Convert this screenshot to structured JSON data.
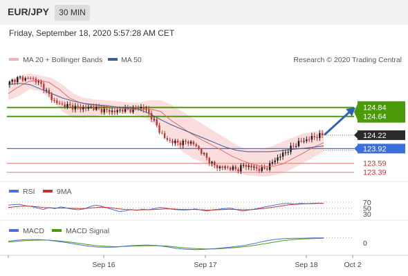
{
  "header": {
    "symbol": "EUR/JPY",
    "timeframe": "30 MIN"
  },
  "datetime": "Friday, September 18, 2020 5:57:28 AM CET",
  "credit": "Research © 2020 Trading Central",
  "colors": {
    "resistance": "#4a9a0a",
    "pivot": "#3a6fdc",
    "support": "#e88a8a",
    "candle_up": "#1a1a1a",
    "candle_down": "#c8312e",
    "ma50": "#3d5e8f",
    "bollinger": "#f4b3b3",
    "rsi": "#4a6fd6",
    "rsi_ma": "#c8312e",
    "macd": "#4a6fd6",
    "macd_signal": "#4a9a0a",
    "last_price_tag": "#2b2b2b",
    "arrow": "#2f63b5"
  },
  "chart_data": [
    {
      "type": "candlestick",
      "panel": "price",
      "legend": [
        "MA 20 + Bollinger Bands",
        "MA 50"
      ],
      "x_tick_labels": [
        "Sep 16",
        "Sep 17",
        "Sep 18",
        "Oct 2"
      ],
      "levels": [
        {
          "label": "124.84",
          "value": 124.84,
          "kind": "resistance"
        },
        {
          "label": "124.64",
          "value": 124.64,
          "kind": "resistance"
        },
        {
          "label": "124.22",
          "value": 124.22,
          "kind": "last"
        },
        {
          "label": "123.92",
          "value": 123.92,
          "kind": "pivot"
        },
        {
          "label": "123.59",
          "value": 123.59,
          "kind": "support"
        },
        {
          "label": "123.39",
          "value": 123.39,
          "kind": "support"
        }
      ],
      "last_price": 124.22,
      "close_path": [
        125.35,
        125.45,
        125.5,
        125.48,
        125.5,
        125.42,
        125.3,
        125.1,
        124.95,
        124.9,
        124.88,
        124.85,
        124.83,
        124.82,
        124.85,
        124.8,
        124.78,
        124.76,
        124.75,
        124.8,
        124.78,
        124.8,
        124.85,
        124.78,
        124.6,
        124.35,
        124.15,
        124.08,
        124.05,
        124.05,
        124.08,
        124.0,
        123.85,
        123.7,
        123.55,
        123.5,
        123.5,
        123.48,
        123.45,
        123.55,
        123.52,
        123.48,
        123.45,
        123.5,
        123.65,
        123.75,
        123.85,
        123.95,
        124.05,
        124.1,
        124.15,
        124.2,
        124.22
      ],
      "ma20_path": [
        125.15,
        125.3,
        125.42,
        125.45,
        125.4,
        125.25,
        125.05,
        124.95,
        124.9,
        124.87,
        124.85,
        124.82,
        124.8,
        124.8,
        124.8,
        124.75,
        124.55,
        124.4,
        124.25,
        124.12,
        124.0,
        123.88,
        123.75,
        123.65,
        123.57,
        123.52,
        123.52,
        123.58,
        123.7,
        123.82,
        123.95,
        124.05
      ],
      "ma50_path": [
        125.35,
        125.38,
        125.35,
        125.25,
        125.15,
        125.05,
        124.98,
        124.93,
        124.9,
        124.88,
        124.85,
        124.83,
        124.8,
        124.7,
        124.57,
        124.45,
        124.35,
        124.25,
        124.15,
        124.05,
        123.95,
        123.88,
        123.85,
        123.85,
        123.85,
        123.87,
        123.9,
        123.92,
        123.95,
        123.98
      ],
      "bollinger_upper_path": [
        125.45,
        125.55,
        125.6,
        125.55,
        125.5,
        125.35,
        125.15,
        125.05,
        125.02,
        125.0,
        124.98,
        124.95,
        124.95,
        125.0,
        125.0,
        124.9,
        124.75,
        124.6,
        124.45,
        124.3,
        124.15,
        124.0,
        123.9,
        123.9,
        123.95,
        124.05,
        124.15,
        124.25,
        124.3,
        124.32
      ],
      "bollinger_lower_path": [
        125.0,
        125.1,
        125.25,
        125.2,
        125.0,
        124.75,
        124.6,
        124.6,
        124.65,
        124.68,
        124.7,
        124.7,
        124.65,
        124.55,
        124.35,
        124.1,
        123.85,
        123.7,
        123.6,
        123.5,
        123.42,
        123.38,
        123.32,
        123.3,
        123.3,
        123.35,
        123.45,
        123.58,
        123.72,
        123.85
      ],
      "forecast_arrow": {
        "from": 124.24,
        "to": 124.84
      }
    },
    {
      "type": "line",
      "panel": "rsi",
      "legend": [
        "RSI",
        "9MA"
      ],
      "y_tick_labels": [
        "70",
        "50",
        "30"
      ],
      "y_ticks": [
        70,
        50,
        30
      ],
      "ylim": [
        20,
        80
      ],
      "series": [
        {
          "name": "RSI",
          "values": [
            60,
            62,
            63,
            58,
            55,
            50,
            45,
            52,
            48,
            54,
            50,
            46,
            44,
            47,
            55,
            60,
            56,
            50,
            44,
            38,
            40,
            45,
            42,
            46,
            44,
            48,
            52,
            50,
            46,
            44,
            43,
            44,
            47,
            43,
            40,
            44,
            46,
            48,
            50,
            45,
            40,
            42,
            46,
            50,
            54,
            58,
            62,
            65,
            66,
            64,
            66,
            65,
            66,
            67,
            66
          ]
        },
        {
          "name": "9MA",
          "values": [
            52,
            54,
            56,
            57,
            56,
            54,
            52,
            51,
            50,
            50,
            50,
            49,
            48,
            48,
            50,
            52,
            53,
            52,
            50,
            47,
            45,
            44,
            43,
            44,
            44,
            45,
            46,
            47,
            47,
            46,
            45,
            45,
            45,
            44,
            43,
            43,
            44,
            45,
            46,
            45,
            44,
            44,
            45,
            47,
            49,
            52,
            55,
            58,
            61,
            63,
            64,
            65,
            65,
            66,
            66
          ]
        }
      ]
    },
    {
      "type": "line",
      "panel": "macd",
      "legend": [
        "MACD",
        "MACD Signal"
      ],
      "y_tick_labels": [
        "0"
      ],
      "y_ticks": [
        0
      ],
      "ylim": [
        -0.3,
        0.25
      ],
      "series": [
        {
          "name": "MACD",
          "values": [
            0.05,
            0.08,
            0.1,
            0.1,
            0.08,
            0.04,
            0.0,
            -0.05,
            -0.1,
            -0.13,
            -0.14,
            -0.13,
            -0.1,
            -0.08,
            -0.07,
            -0.08,
            -0.12,
            -0.17,
            -0.2,
            -0.21,
            -0.2,
            -0.18,
            -0.15,
            -0.12,
            -0.08,
            -0.02,
            0.05,
            0.1,
            0.13,
            0.14,
            0.14,
            0.15,
            0.15
          ]
        },
        {
          "name": "MACD Signal",
          "values": [
            0.02,
            0.05,
            0.07,
            0.08,
            0.08,
            0.06,
            0.03,
            -0.01,
            -0.05,
            -0.09,
            -0.11,
            -0.12,
            -0.11,
            -0.1,
            -0.09,
            -0.09,
            -0.1,
            -0.13,
            -0.16,
            -0.18,
            -0.19,
            -0.19,
            -0.17,
            -0.15,
            -0.12,
            -0.08,
            -0.03,
            0.02,
            0.07,
            0.1,
            0.12,
            0.13,
            0.14
          ]
        }
      ]
    }
  ]
}
